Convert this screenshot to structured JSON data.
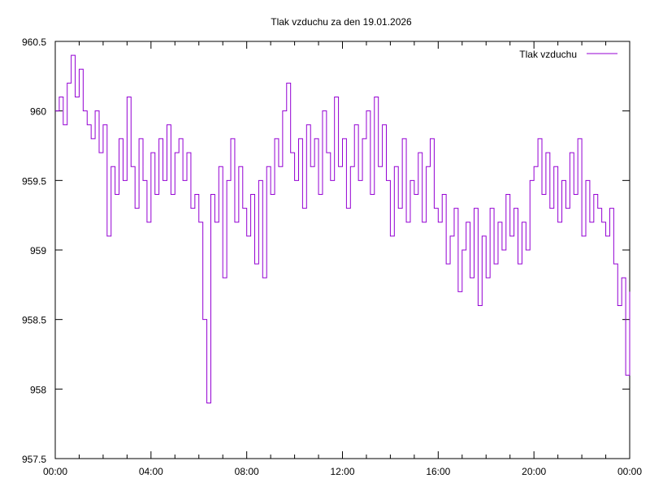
{
  "chart_data": {
    "type": "line",
    "title": "Tlak vzduchu za den 19.01.2026",
    "xlabel": "",
    "ylabel": "",
    "ylim": [
      957.5,
      960.5
    ],
    "xlim_hours": [
      0,
      24
    ],
    "yticks": [
      "960.5",
      "960",
      "959.5",
      "959",
      "958.5",
      "958",
      "957.5"
    ],
    "ytick_values": [
      960.5,
      960,
      959.5,
      959,
      958.5,
      958,
      957.5
    ],
    "xticks": [
      "00:00",
      "04:00",
      "08:00",
      "12:00",
      "16:00",
      "20:00",
      "00:00"
    ],
    "xtick_hours": [
      0,
      4,
      8,
      12,
      16,
      20,
      24
    ],
    "grid": false,
    "legend_position": "top-right",
    "color": "#9400D3",
    "series": [
      {
        "name": "Tlak vzduchu",
        "step_minutes": 10,
        "values": [
          960.0,
          960.1,
          959.9,
          960.2,
          960.4,
          960.1,
          960.3,
          960.0,
          959.9,
          959.8,
          960.0,
          959.7,
          959.9,
          959.1,
          959.6,
          959.4,
          959.8,
          959.5,
          960.1,
          959.6,
          959.3,
          959.8,
          959.5,
          959.2,
          959.7,
          959.4,
          959.8,
          959.5,
          959.9,
          959.4,
          959.7,
          959.8,
          959.5,
          959.7,
          959.3,
          959.4,
          959.2,
          958.5,
          957.9,
          959.4,
          959.2,
          959.6,
          958.8,
          959.5,
          959.8,
          959.2,
          959.6,
          959.3,
          959.1,
          959.4,
          958.9,
          959.5,
          958.8,
          959.6,
          959.4,
          959.8,
          959.6,
          960.0,
          960.2,
          959.7,
          959.5,
          959.8,
          959.3,
          959.9,
          959.6,
          959.8,
          959.4,
          960.0,
          959.7,
          959.5,
          960.1,
          959.6,
          959.8,
          959.3,
          959.6,
          959.9,
          959.5,
          959.8,
          960.0,
          959.4,
          960.1,
          959.6,
          959.9,
          959.5,
          959.1,
          959.6,
          959.3,
          959.8,
          959.2,
          959.5,
          959.4,
          959.7,
          959.2,
          959.6,
          959.8,
          959.3,
          959.2,
          959.4,
          958.9,
          959.1,
          959.3,
          958.7,
          959.0,
          959.2,
          958.8,
          959.3,
          958.6,
          959.1,
          958.8,
          959.3,
          958.9,
          959.2,
          959.0,
          959.4,
          959.1,
          959.3,
          958.9,
          959.2,
          959.0,
          959.5,
          959.6,
          959.8,
          959.4,
          959.7,
          959.3,
          959.6,
          959.2,
          959.5,
          959.3,
          959.7,
          959.4,
          959.8,
          959.1,
          959.5,
          959.2,
          959.4,
          959.3,
          959.2,
          959.1,
          959.3,
          958.9,
          958.6,
          958.8,
          958.1,
          958.7
        ]
      }
    ]
  }
}
